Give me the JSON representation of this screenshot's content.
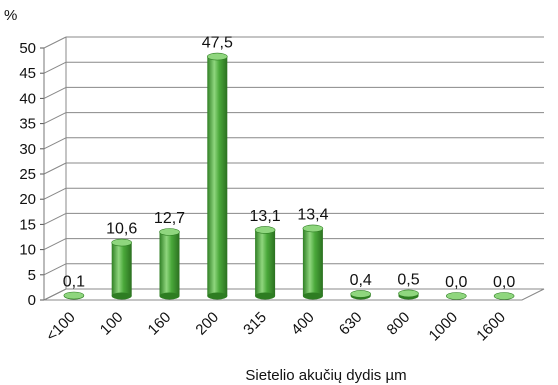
{
  "chart_data": {
    "type": "bar",
    "categories": [
      "<100",
      "100",
      "160",
      "200",
      "315",
      "400",
      "630",
      "800",
      "1000",
      "1600"
    ],
    "values": [
      0.1,
      10.6,
      12.7,
      47.5,
      13.1,
      13.4,
      0.4,
      0.5,
      0.0,
      0.0
    ],
    "data_labels": [
      "0,1",
      "10,6",
      "12,7",
      "47,5",
      "13,1",
      "13,4",
      "0,4",
      "0,5",
      "0,0",
      "0,0"
    ],
    "title": "",
    "xlabel": "Sietelio akučių dydis µm",
    "ylabel": "%",
    "ylim": [
      0,
      50
    ],
    "yticks": [
      0,
      5,
      10,
      15,
      20,
      25,
      30,
      35,
      40,
      45,
      50
    ],
    "grid": true,
    "legend": "none",
    "bar_color": "#4aa83a",
    "bar_dark": "#2e7d22",
    "bar_light": "#8fd67e"
  }
}
